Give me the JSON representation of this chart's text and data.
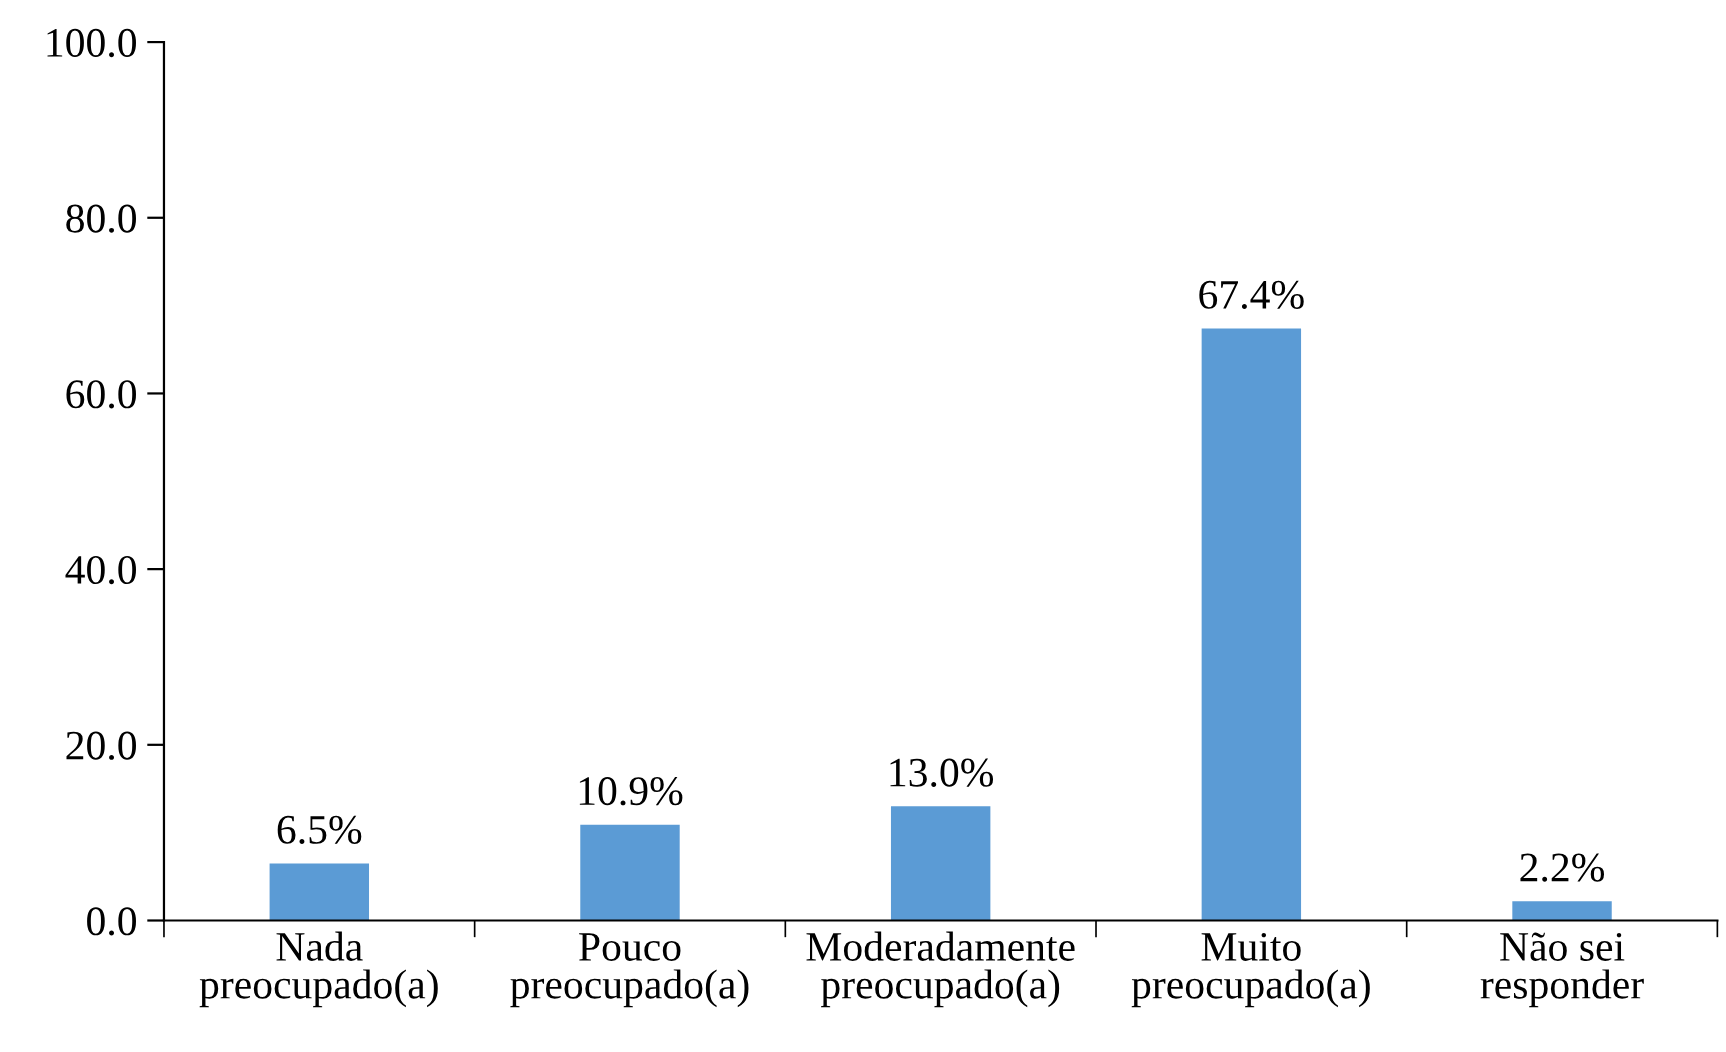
{
  "chart_data": {
    "type": "bar",
    "categories": [
      "Nada\npreocupado(a)",
      "Pouco\npreocupado(a)",
      "Moderadamente\npreocupado(a)",
      "Muito\npreocupado(a)",
      "Não sei\nresponder"
    ],
    "values": [
      6.5,
      10.9,
      13.0,
      67.4,
      2.2
    ],
    "value_labels": [
      "6.5%",
      "10.9%",
      "13.0%",
      "67.4%",
      "2.2%"
    ],
    "color": "#5b9bd5",
    "ylim": [
      0,
      100
    ],
    "yticks": [
      {
        "value": 0,
        "label": "0.0"
      },
      {
        "value": 20,
        "label": "20.0"
      },
      {
        "value": 40,
        "label": "40.0"
      },
      {
        "value": 60,
        "label": "60.0"
      },
      {
        "value": 80,
        "label": "80.0"
      },
      {
        "value": 100,
        "label": "100.0"
      }
    ],
    "grid": false
  }
}
